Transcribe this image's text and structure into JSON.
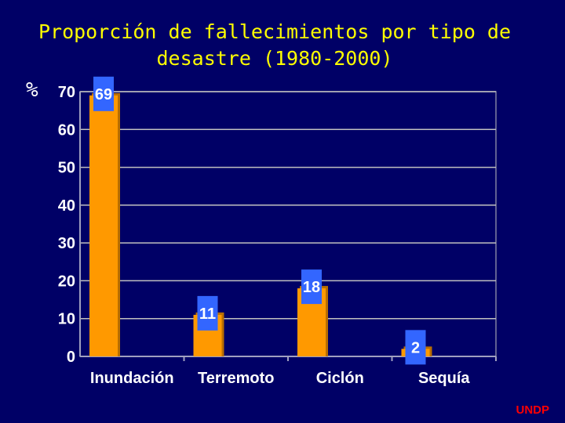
{
  "chart_data": {
    "type": "bar",
    "title_lines": [
      "Proporción de fallecimientos por tipo de",
      "desastre (1980-2000)"
    ],
    "ylabel": "%",
    "xlabel": "",
    "categories": [
      "Inundación",
      "Terremoto",
      "Ciclón",
      "Sequía"
    ],
    "values": [
      69,
      11,
      18,
      2
    ],
    "data_labels": [
      "69",
      "11",
      "18",
      "2"
    ],
    "ylim": [
      0,
      70
    ],
    "yticks": [
      0,
      10,
      20,
      30,
      40,
      50,
      60,
      70
    ],
    "grid": true,
    "colors": {
      "background": "#000066",
      "bar": "#FF9900",
      "label_box": "#3366FF",
      "grid": "#C0C0C0",
      "title": "#FFFF00",
      "credit": "#FF0000"
    }
  },
  "footer": {
    "credit": "UNDP"
  }
}
